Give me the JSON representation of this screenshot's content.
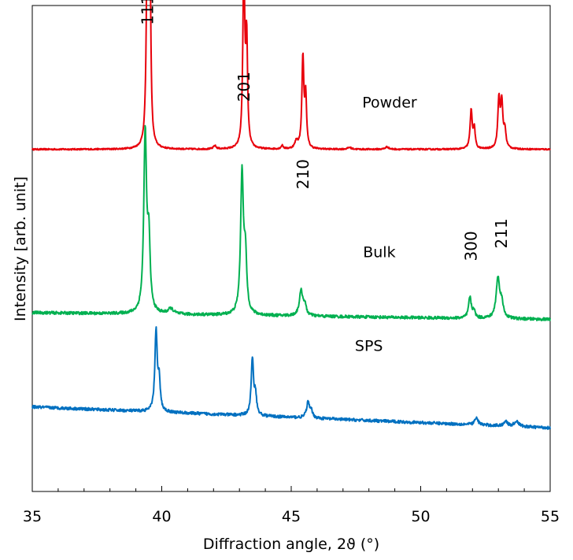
{
  "chart_data": {
    "type": "line",
    "xlabel": "Diffraction angle, 2ϑ (°)",
    "ylabel": "Intensity [arb. unit]",
    "xlim": [
      35,
      55
    ],
    "xticks": [
      "35",
      "40",
      "45",
      "50",
      "55"
    ],
    "ylim": [
      0,
      100
    ],
    "grid": false,
    "legend": "none",
    "series": [
      {
        "name": "Powder",
        "color": "#e8000b",
        "baseline": 70.4,
        "noise": 0.15,
        "drift": 0,
        "peaks": [
          {
            "x": 39.45,
            "h": 53.0,
            "w": 0.045
          },
          {
            "x": 39.55,
            "h": 29.5,
            "w": 0.04
          },
          {
            "x": 43.17,
            "h": 37.4,
            "w": 0.045
          },
          {
            "x": 43.28,
            "h": 21.2,
            "w": 0.04
          },
          {
            "x": 45.45,
            "h": 18.8,
            "w": 0.045
          },
          {
            "x": 45.56,
            "h": 10.2,
            "w": 0.04
          },
          {
            "x": 51.95,
            "h": 8.0,
            "w": 0.05
          },
          {
            "x": 52.07,
            "h": 4.0,
            "w": 0.04
          },
          {
            "x": 53.02,
            "h": 9.8,
            "w": 0.05
          },
          {
            "x": 53.13,
            "h": 8.9,
            "w": 0.05
          },
          {
            "x": 53.25,
            "h": 3.5,
            "w": 0.05
          },
          {
            "x": 42.05,
            "h": 0.7,
            "w": 0.06
          },
          {
            "x": 44.65,
            "h": 0.7,
            "w": 0.05
          },
          {
            "x": 45.2,
            "h": 1.5,
            "w": 0.07
          },
          {
            "x": 47.25,
            "h": 0.4,
            "w": 0.08
          },
          {
            "x": 48.7,
            "h": 0.5,
            "w": 0.08
          }
        ]
      },
      {
        "name": "Bulk",
        "color": "#00b050",
        "baseline": 36.8,
        "noise": 0.3,
        "drift": -1.4,
        "peaks": [
          {
            "x": 39.36,
            "h": 36.7,
            "w": 0.065
          },
          {
            "x": 39.5,
            "h": 14.0,
            "w": 0.06
          },
          {
            "x": 40.35,
            "h": 1.1,
            "w": 0.12
          },
          {
            "x": 43.1,
            "h": 29.0,
            "w": 0.065
          },
          {
            "x": 43.23,
            "h": 11.0,
            "w": 0.06
          },
          {
            "x": 45.38,
            "h": 5.0,
            "w": 0.08
          },
          {
            "x": 45.52,
            "h": 2.0,
            "w": 0.07
          },
          {
            "x": 51.9,
            "h": 4.3,
            "w": 0.06
          },
          {
            "x": 52.05,
            "h": 1.5,
            "w": 0.06
          },
          {
            "x": 52.98,
            "h": 8.0,
            "w": 0.08
          },
          {
            "x": 53.12,
            "h": 3.0,
            "w": 0.08
          }
        ]
      },
      {
        "name": "SPS",
        "color": "#0070c0",
        "baseline": 17.4,
        "noise": 0.3,
        "drift": -4.3,
        "peaks": [
          {
            "x": 39.78,
            "h": 16.6,
            "w": 0.055
          },
          {
            "x": 39.9,
            "h": 5.8,
            "w": 0.05
          },
          {
            "x": 43.5,
            "h": 11.5,
            "w": 0.055
          },
          {
            "x": 43.62,
            "h": 4.0,
            "w": 0.05
          },
          {
            "x": 45.65,
            "h": 3.2,
            "w": 0.07
          },
          {
            "x": 45.78,
            "h": 1.2,
            "w": 0.06
          },
          {
            "x": 52.15,
            "h": 1.4,
            "w": 0.08
          },
          {
            "x": 53.28,
            "h": 1.1,
            "w": 0.07
          },
          {
            "x": 53.7,
            "h": 1.1,
            "w": 0.1
          }
        ]
      }
    ],
    "peak_labels": [
      {
        "text": "111",
        "x": 39.45,
        "y": 96.0
      },
      {
        "text": "201",
        "x": 43.17,
        "y": 80.2
      },
      {
        "text": "210",
        "x": 45.45,
        "y": 62.2
      },
      {
        "text": "300",
        "x": 51.95,
        "y": 47.4
      },
      {
        "text": "211",
        "x": 53.12,
        "y": 50.0
      }
    ],
    "series_labels": [
      {
        "text": "Powder",
        "x": 48.8,
        "y": 79.0
      },
      {
        "text": "Bulk",
        "x": 48.4,
        "y": 48.2
      },
      {
        "text": "SPS",
        "x": 48.0,
        "y": 28.9
      }
    ]
  }
}
